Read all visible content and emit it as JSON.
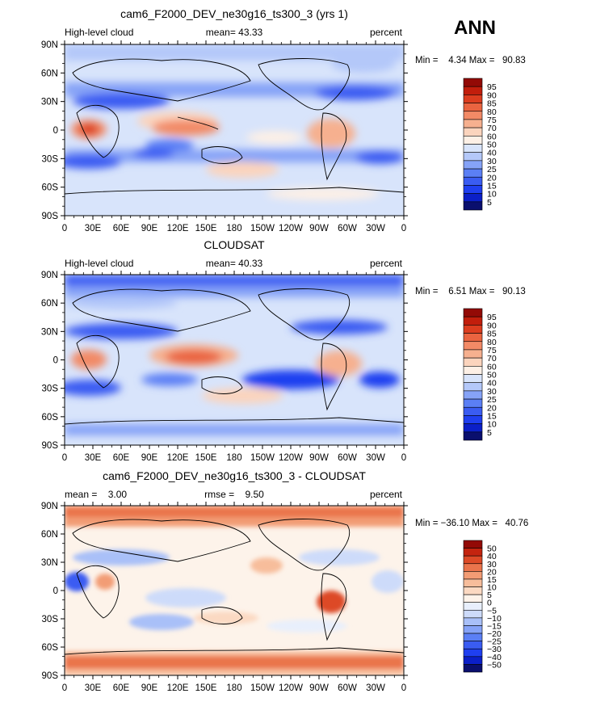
{
  "season": "ANN",
  "colors": {
    "abs_scale": [
      "#0a0f6e",
      "#0b1fc8",
      "#1f3ff0",
      "#3a5cf2",
      "#5b7ff5",
      "#86a3f7",
      "#b4c8f9",
      "#d8e4fb",
      "#fdf0e6",
      "#fbd4bd",
      "#f6b08f",
      "#f28a66",
      "#ea6440",
      "#dc3d1f",
      "#c21e0c",
      "#930a06"
    ],
    "diff_scale": [
      "#0a0f6e",
      "#0b1fc8",
      "#1f3ff0",
      "#3a5cf2",
      "#5b7ff5",
      "#86a3f7",
      "#a9c0f8",
      "#cddbfa",
      "#e8effc",
      "#fdf3ea",
      "#fbd9c2",
      "#f7bd9b",
      "#f29c74",
      "#ea744c",
      "#dd4a27",
      "#c4240f",
      "#930a06"
    ],
    "coastline": "#000000"
  },
  "chart_data": [
    {
      "type": "heatmap",
      "title": "cam6_F2000_DEV_ne30g16_ts300_3 (yrs 1)",
      "left_label": "High-level cloud",
      "center_label": "mean=  43.33",
      "right_label": "percent",
      "minmax_text": "Min =    4.34 Max =   90.83",
      "mean": 43.33,
      "min": 4.34,
      "max": 90.83,
      "units": "percent",
      "xticks": [
        "0",
        "30E",
        "60E",
        "90E",
        "120E",
        "150E",
        "180",
        "150W",
        "120W",
        "90W",
        "60W",
        "30W",
        "0"
      ],
      "yticks": [
        "90N",
        "60N",
        "30N",
        "0",
        "30S",
        "60S",
        "90S"
      ],
      "colorbar_levels": [
        "95",
        "90",
        "85",
        "80",
        "75",
        "70",
        "60",
        "50",
        "40",
        "30",
        "25",
        "20",
        "15",
        "10",
        "5"
      ]
    },
    {
      "type": "heatmap",
      "title": "CLOUDSAT",
      "left_label": "High-level cloud",
      "center_label": "mean=  40.33",
      "right_label": "percent",
      "minmax_text": "Min =    6.51 Max =   90.13",
      "mean": 40.33,
      "min": 6.51,
      "max": 90.13,
      "units": "percent",
      "xticks": [
        "0",
        "30E",
        "60E",
        "90E",
        "120E",
        "150E",
        "180",
        "150W",
        "120W",
        "90W",
        "60W",
        "30W",
        "0"
      ],
      "yticks": [
        "90N",
        "60N",
        "30N",
        "0",
        "30S",
        "60S",
        "90S"
      ],
      "colorbar_levels": [
        "95",
        "90",
        "85",
        "80",
        "75",
        "70",
        "60",
        "50",
        "40",
        "30",
        "25",
        "20",
        "15",
        "10",
        "5"
      ]
    },
    {
      "type": "heatmap",
      "title": "cam6_F2000_DEV_ne30g16_ts300_3 - CLOUDSAT",
      "left_label": "mean =    3.00",
      "center_label": "rmse =    9.50",
      "right_label": "percent",
      "minmax_text": "Min = −36.10 Max =   40.76",
      "mean": 3.0,
      "rmse": 9.5,
      "min": -36.1,
      "max": 40.76,
      "units": "percent",
      "xticks": [
        "0",
        "30E",
        "60E",
        "90E",
        "120E",
        "150E",
        "180",
        "150W",
        "120W",
        "90W",
        "60W",
        "30W",
        "0"
      ],
      "yticks": [
        "90N",
        "60N",
        "30N",
        "0",
        "30S",
        "60S",
        "90S"
      ],
      "colorbar_levels": [
        "50",
        "40",
        "30",
        "20",
        "15",
        "10",
        "5",
        "0",
        "−5",
        "−10",
        "−15",
        "−20",
        "−25",
        "−30",
        "−40",
        "−50"
      ]
    }
  ]
}
